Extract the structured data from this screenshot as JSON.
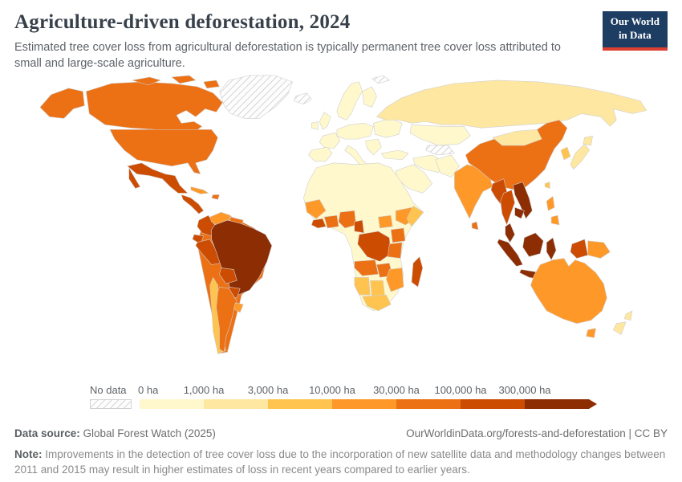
{
  "header": {
    "title": "Agriculture-driven deforestation, 2024",
    "subtitle": "Estimated tree cover loss from agricultural deforestation is typically permanent tree cover loss attributed to small and large-scale agriculture.",
    "logo": {
      "line1": "Our World",
      "line2": "in Data",
      "background": "#1d3d63",
      "accent": "#dc3e32"
    }
  },
  "legend": {
    "no_data_label": "No data",
    "bin_labels": [
      "0 ha",
      "1,000 ha",
      "3,000 ha",
      "10,000 ha",
      "30,000 ha",
      "100,000 ha",
      "300,000 ha"
    ],
    "colors": [
      "#fff8cc",
      "#fee7a0",
      "#fec44f",
      "#fe9929",
      "#ec7014",
      "#cc4c02",
      "#8c2d04"
    ]
  },
  "footer": {
    "datasource_label": "Data source:",
    "datasource": " Global Forest Watch (2025)",
    "link": "OurWorldinData.org/forests-and-deforestation | CC BY",
    "note_label": "Note:",
    "note": " Improvements in the detection of tree cover loss due to the incorporation of new satellite data and methodology changes between 2011 and 2015 may result in higher estimates of loss in recent years compared to earlier years."
  },
  "map": {
    "regions": {
      "greenland": "nodata",
      "iceland": "nodata",
      "svalbard": "nodata",
      "central-asia-hatch": "nodata",
      "usa-alaska": 4,
      "canada": 4,
      "canada-islands": 4,
      "usa": 4,
      "mexico": 5,
      "central-america": 5,
      "cuba": 3,
      "hispaniola": 4,
      "south-america-base": 4,
      "colombia": 5,
      "venezuela": 3,
      "guyanas": 4,
      "ecuador": 5,
      "peru": 5,
      "brazil": 6,
      "bolivia": 5,
      "paraguay": 5,
      "chile": 2,
      "argentina": 4,
      "uruguay": 3,
      "scandinavia": 0,
      "finland": 0,
      "uk": 0,
      "ireland": 0,
      "iberia": 0,
      "france": 0,
      "central-europe": 0,
      "italy": 0,
      "balkans": 0,
      "east-europe": 0,
      "russia": 1,
      "kazakhstan": 0,
      "turkey": 0,
      "iran": 0,
      "saudi": 0,
      "pakistan-afghanistan": 0,
      "africa-base": 0,
      "senegal-guinea": 3,
      "sierra-liberia": 5,
      "ivory-ghana": 4,
      "nigeria": 4,
      "cameroon": 5,
      "south-sudan": 3,
      "ethiopia": 3,
      "somalia": 2,
      "drc": 5,
      "uganda-kenya": 4,
      "tanzania": 4,
      "angola": 4,
      "zambia": 4,
      "mozambique-zimbabwe": 3,
      "namibia": 2,
      "botswana": 2,
      "south-africa": 2,
      "madagascar": 5,
      "india": 3,
      "sri-lanka": 4,
      "china": 4,
      "mongolia": 1,
      "korea": 2,
      "japan": 1,
      "taiwan": 2,
      "myanmar": 5,
      "thailand": 5,
      "laos-vietnam": 6,
      "cambodia": 6,
      "malay-peninsula": 6,
      "sumatra": 6,
      "borneo": 6,
      "java": 6,
      "sulawesi": 6,
      "lesser-sunda": 5,
      "new-guinea-west": 5,
      "png": 3,
      "philippines": 3,
      "australia": 3,
      "tasmania": 3,
      "new-zealand": 1
    }
  },
  "chart_data": {
    "type": "choropleth",
    "title": "Agriculture-driven deforestation, 2024",
    "unit": "ha",
    "legend_position": "bottom",
    "bins": [
      {
        "label": "No data",
        "color": "hatched"
      },
      {
        "label": "0 – 1,000 ha",
        "color": "#fff8cc"
      },
      {
        "label": "1,000 – 3,000 ha",
        "color": "#fee7a0"
      },
      {
        "label": "3,000 – 10,000 ha",
        "color": "#fec44f"
      },
      {
        "label": "10,000 – 30,000 ha",
        "color": "#fe9929"
      },
      {
        "label": "30,000 – 100,000 ha",
        "color": "#ec7014"
      },
      {
        "label": "100,000 – 300,000 ha",
        "color": "#cc4c02"
      },
      {
        "label": "300,000+ ha",
        "color": "#8c2d04"
      }
    ],
    "entities": [
      {
        "name": "Canada",
        "bin": "30,000 – 100,000 ha"
      },
      {
        "name": "United States",
        "bin": "30,000 – 100,000 ha"
      },
      {
        "name": "Mexico",
        "bin": "100,000 – 300,000 ha"
      },
      {
        "name": "Central America",
        "bin": "100,000 – 300,000 ha"
      },
      {
        "name": "Cuba",
        "bin": "10,000 – 30,000 ha"
      },
      {
        "name": "Colombia",
        "bin": "100,000 – 300,000 ha"
      },
      {
        "name": "Venezuela",
        "bin": "10,000 – 30,000 ha"
      },
      {
        "name": "Guyana & Suriname",
        "bin": "30,000 – 100,000 ha"
      },
      {
        "name": "Ecuador",
        "bin": "100,000 – 300,000 ha"
      },
      {
        "name": "Peru",
        "bin": "100,000 – 300,000 ha"
      },
      {
        "name": "Brazil",
        "bin": "300,000+ ha"
      },
      {
        "name": "Bolivia",
        "bin": "100,000 – 300,000 ha"
      },
      {
        "name": "Paraguay",
        "bin": "100,000 – 300,000 ha"
      },
      {
        "name": "Chile",
        "bin": "3,000 – 10,000 ha"
      },
      {
        "name": "Argentina",
        "bin": "30,000 – 100,000 ha"
      },
      {
        "name": "Uruguay",
        "bin": "10,000 – 30,000 ha"
      },
      {
        "name": "Europe (most countries)",
        "bin": "0 – 1,000 ha"
      },
      {
        "name": "Russia",
        "bin": "1,000 – 3,000 ha"
      },
      {
        "name": "Kazakhstan & Central Asia",
        "bin": "0 – 1,000 ha"
      },
      {
        "name": "Middle East & North Africa",
        "bin": "0 – 1,000 ha"
      },
      {
        "name": "Senegal & Guinea",
        "bin": "10,000 – 30,000 ha"
      },
      {
        "name": "Liberia & Sierra Leone",
        "bin": "100,000 – 300,000 ha"
      },
      {
        "name": "Côte d'Ivoire & Ghana",
        "bin": "30,000 – 100,000 ha"
      },
      {
        "name": "Nigeria",
        "bin": "30,000 – 100,000 ha"
      },
      {
        "name": "Cameroon",
        "bin": "100,000 – 300,000 ha"
      },
      {
        "name": "South Sudan",
        "bin": "10,000 – 30,000 ha"
      },
      {
        "name": "Ethiopia",
        "bin": "10,000 – 30,000 ha"
      },
      {
        "name": "Somalia",
        "bin": "3,000 – 10,000 ha"
      },
      {
        "name": "Democratic Republic of Congo",
        "bin": "100,000 – 300,000 ha"
      },
      {
        "name": "Kenya & Uganda",
        "bin": "30,000 – 100,000 ha"
      },
      {
        "name": "Tanzania",
        "bin": "30,000 – 100,000 ha"
      },
      {
        "name": "Angola",
        "bin": "30,000 – 100,000 ha"
      },
      {
        "name": "Zambia",
        "bin": "30,000 – 100,000 ha"
      },
      {
        "name": "Mozambique & Zimbabwe",
        "bin": "10,000 – 30,000 ha"
      },
      {
        "name": "Namibia & Botswana",
        "bin": "3,000 – 10,000 ha"
      },
      {
        "name": "South Africa",
        "bin": "3,000 – 10,000 ha"
      },
      {
        "name": "Madagascar",
        "bin": "100,000 – 300,000 ha"
      },
      {
        "name": "India",
        "bin": "10,000 – 30,000 ha"
      },
      {
        "name": "Sri Lanka",
        "bin": "30,000 – 100,000 ha"
      },
      {
        "name": "China",
        "bin": "30,000 – 100,000 ha"
      },
      {
        "name": "Mongolia",
        "bin": "1,000 – 3,000 ha"
      },
      {
        "name": "Japan",
        "bin": "1,000 – 3,000 ha"
      },
      {
        "name": "South Korea",
        "bin": "3,000 – 10,000 ha"
      },
      {
        "name": "Myanmar",
        "bin": "100,000 – 300,000 ha"
      },
      {
        "name": "Thailand",
        "bin": "100,000 – 300,000 ha"
      },
      {
        "name": "Laos & Vietnam",
        "bin": "300,000+ ha"
      },
      {
        "name": "Cambodia",
        "bin": "300,000+ ha"
      },
      {
        "name": "Malaysia",
        "bin": "300,000+ ha"
      },
      {
        "name": "Indonesia",
        "bin": "300,000+ ha"
      },
      {
        "name": "Philippines",
        "bin": "10,000 – 30,000 ha"
      },
      {
        "name": "Papua New Guinea",
        "bin": "10,000 – 30,000 ha"
      },
      {
        "name": "Australia",
        "bin": "10,000 – 30,000 ha"
      },
      {
        "name": "New Zealand",
        "bin": "1,000 – 3,000 ha"
      },
      {
        "name": "Greenland",
        "bin": "No data"
      },
      {
        "name": "Iceland",
        "bin": "No data"
      },
      {
        "name": "Turkmenistan & Uzbekistan",
        "bin": "No data"
      }
    ]
  }
}
